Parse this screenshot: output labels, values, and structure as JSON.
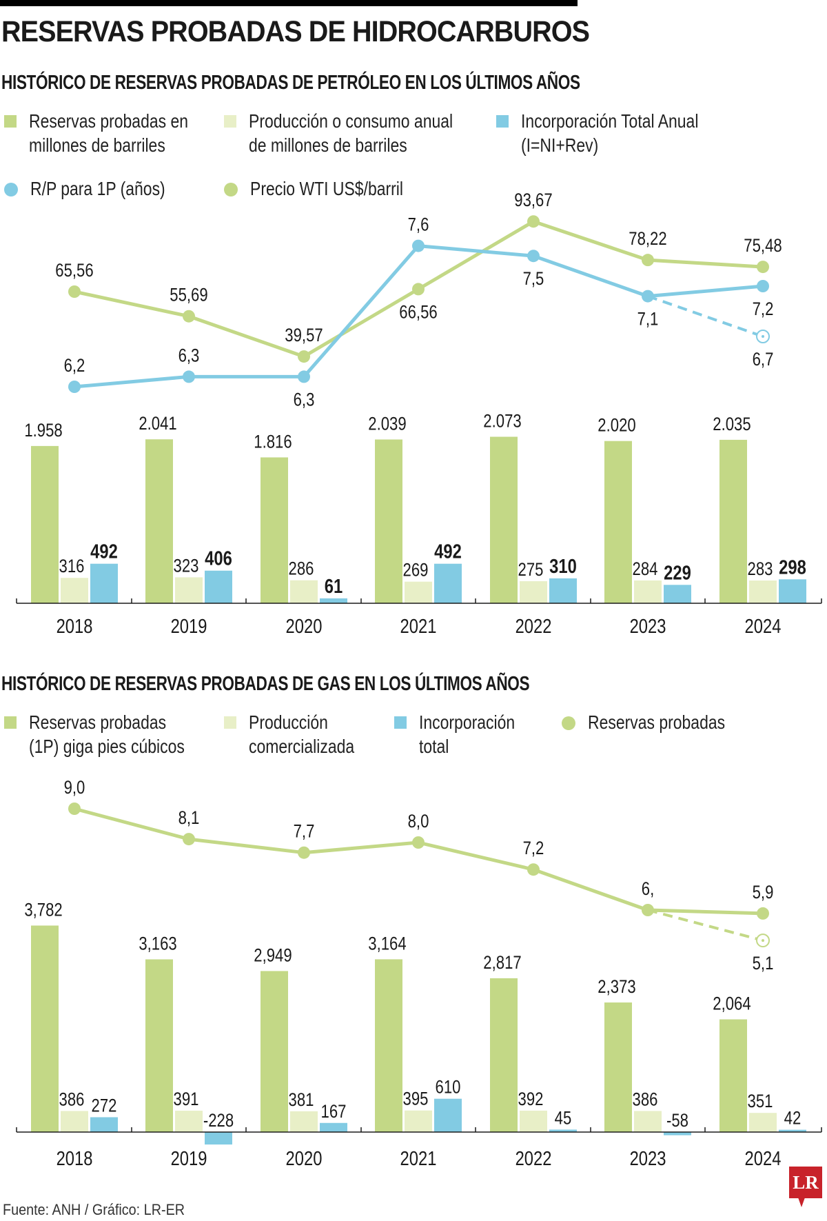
{
  "header": {
    "title": "RESERVAS PROBADAS DE HIDROCARBUROS"
  },
  "footer": {
    "source": "Fuente: ANH / Gráfico: LR-ER",
    "logo": "LR"
  },
  "colors": {
    "green": "#c3d886",
    "light": "#e8efc7",
    "blue": "#82cbe3",
    "axis": "#1a1a1a"
  },
  "oil": {
    "subtitle": "HISTÓRICO DE RESERVAS PROBADAS DE PETRÓLEO EN LOS ÚLTIMOS AÑOS",
    "legend": [
      {
        "type": "square",
        "color": "green",
        "line1": "Reservas probadas en",
        "line2": "millones de barriles"
      },
      {
        "type": "square",
        "color": "light",
        "line1": "Producción o consumo anual",
        "line2": "de millones de barriles"
      },
      {
        "type": "square",
        "color": "blue",
        "line1": "Incorporación Total Anual",
        "line2": "(I=NI+Rev)"
      },
      {
        "type": "dot",
        "color": "blue",
        "line1": "R/P para 1P (años)",
        "line2": ""
      },
      {
        "type": "dot",
        "color": "green",
        "line1": "Precio WTI US$/barril",
        "line2": ""
      }
    ]
  },
  "gas": {
    "subtitle": "HISTÓRICO DE RESERVAS PROBADAS DE GAS EN LOS ÚLTIMOS AÑOS",
    "legend": [
      {
        "type": "square",
        "color": "green",
        "line1": "Reservas probadas",
        "line2": "(1P) giga pies cúbicos"
      },
      {
        "type": "square",
        "color": "light",
        "line1": "Producción",
        "line2": "comercializada"
      },
      {
        "type": "square",
        "color": "blue",
        "line1": "Incorporación",
        "line2": "total"
      },
      {
        "type": "dot",
        "color": "green",
        "line1": "Reservas probadas",
        "line2": ""
      }
    ]
  },
  "chart_data": [
    {
      "type": "bar",
      "title": "HISTÓRICO DE RESERVAS PROBADAS DE PETRÓLEO EN LOS ÚLTIMOS AÑOS",
      "xlabel": "",
      "ylabel": "",
      "categories": [
        "2018",
        "2019",
        "2020",
        "2021",
        "2022",
        "2023",
        "2024"
      ],
      "series": [
        {
          "name": "Reservas probadas en millones de barriles",
          "color": "green",
          "values": [
            1958,
            2041,
            1816,
            2039,
            2073,
            2020,
            2035
          ],
          "labels": [
            "1.958",
            "2.041",
            "1.816",
            "2.039",
            "2.073",
            "2.020",
            "2.035"
          ],
          "label_bold": false
        },
        {
          "name": "Producción o consumo anual de millones de barriles",
          "color": "light",
          "values": [
            316,
            323,
            286,
            269,
            275,
            284,
            283
          ],
          "labels": [
            "316",
            "323",
            "286",
            "269",
            "275",
            "284",
            "283"
          ],
          "label_bold": false
        },
        {
          "name": "Incorporación Total Anual (I=NI+Rev)",
          "color": "blue",
          "values": [
            492,
            406,
            61,
            492,
            310,
            229,
            298
          ],
          "labels": [
            "492",
            "406",
            "61",
            "492",
            "310",
            "229",
            "298"
          ],
          "label_bold": true
        }
      ],
      "lines": [
        {
          "name": "Precio WTI US$/barril",
          "color": "green",
          "values": [
            65.56,
            55.69,
            39.57,
            66.56,
            93.67,
            78.22,
            75.48
          ],
          "labels": [
            "65,56",
            "55,69",
            "39,57",
            "66,56",
            "93,67",
            "78,22",
            "75,48"
          ],
          "label_pos": [
            "above",
            "above",
            "above",
            "below",
            "above",
            "above",
            "above"
          ]
        },
        {
          "name": "R/P para 1P (años)",
          "color": "blue",
          "values": [
            6.2,
            6.3,
            6.3,
            7.6,
            7.5,
            7.1,
            7.2
          ],
          "labels": [
            "6,2",
            "6,3",
            "6,3",
            "7,6",
            "7,5",
            "7,1",
            "7,2"
          ],
          "label_pos": [
            "above",
            "above",
            "below",
            "above",
            "below",
            "below",
            "below"
          ],
          "projection": {
            "from_index": 5,
            "value": 6.7,
            "label": "6,7"
          }
        }
      ]
    },
    {
      "type": "bar",
      "title": "HISTÓRICO DE RESERVAS PROBADAS DE GAS EN LOS ÚLTIMOS AÑOS",
      "xlabel": "",
      "ylabel": "",
      "categories": [
        "2018",
        "2019",
        "2020",
        "2021",
        "2022",
        "2023",
        "2024"
      ],
      "series": [
        {
          "name": "Reservas probadas (1P) giga pies cúbicos",
          "color": "green",
          "values": [
            3782,
            3163,
            2949,
            3164,
            2817,
            2373,
            2064
          ],
          "labels": [
            "3,782",
            "3,163",
            "2,949",
            "3,164",
            "2,817",
            "2,373",
            "2,064"
          ],
          "label_bold": false
        },
        {
          "name": "Producción comercializada",
          "color": "light",
          "values": [
            386,
            391,
            381,
            395,
            392,
            386,
            351
          ],
          "labels": [
            "386",
            "391",
            "381",
            "395",
            "392",
            "386",
            "351"
          ],
          "label_bold": false
        },
        {
          "name": "Incorporación total",
          "color": "blue",
          "values": [
            272,
            -228,
            167,
            610,
            45,
            -58,
            42
          ],
          "labels": [
            "272",
            "-228",
            "167",
            "610",
            "45",
            "-58",
            "42"
          ],
          "label_bold": false
        }
      ],
      "lines": [
        {
          "name": "Reservas probadas",
          "color": "green",
          "values": [
            9.0,
            8.1,
            7.7,
            8.0,
            7.2,
            6.0,
            5.9
          ],
          "labels": [
            "9,0",
            "8,1",
            "7,7",
            "8,0",
            "7,2",
            "6,",
            "5,9"
          ],
          "label_pos": [
            "above",
            "above",
            "above",
            "above",
            "above",
            "above",
            "above"
          ],
          "projection": {
            "from_index": 5,
            "value": 5.1,
            "label": "5,1"
          }
        }
      ]
    }
  ]
}
